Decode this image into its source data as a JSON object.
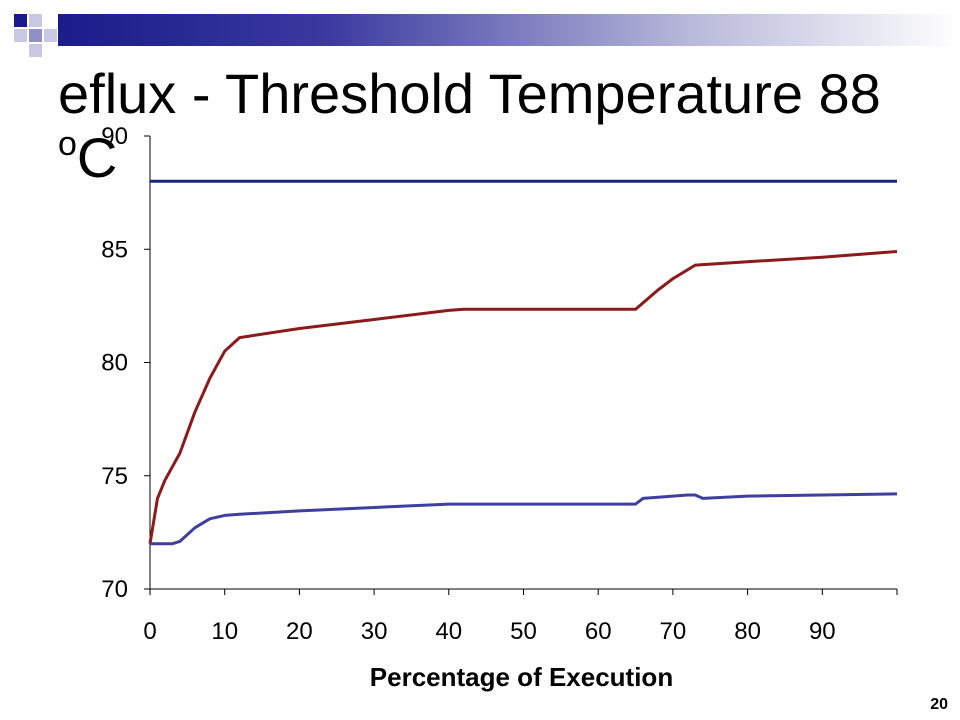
{
  "slide": {
    "title_text": "eflux - Threshold Temperature 88",
    "title_degree": "o",
    "title_unit": "C",
    "page_number": "20"
  },
  "chart_data": {
    "type": "line",
    "xlabel": "Percentage of Execution",
    "ylabel": "",
    "xlim": [
      0,
      100
    ],
    "ylim": [
      70,
      90
    ],
    "x_ticks": [
      0,
      10,
      20,
      30,
      40,
      50,
      60,
      70,
      80,
      90
    ],
    "y_ticks": [
      70,
      75,
      80,
      85,
      90
    ],
    "grid": false,
    "series": [
      {
        "color": "#1a237e",
        "x": [
          0,
          100
        ],
        "y": [
          88,
          88
        ]
      },
      {
        "color": "#8b1a1a",
        "x": [
          0,
          1,
          2,
          4,
          6,
          8,
          10,
          12,
          20,
          30,
          40,
          42,
          50,
          60,
          65,
          68,
          70,
          73,
          80,
          90,
          100
        ],
        "y": [
          72,
          74,
          74.8,
          76,
          77.8,
          79.3,
          80.5,
          81.1,
          81.5,
          81.9,
          82.3,
          82.35,
          82.35,
          82.35,
          82.35,
          83.2,
          83.7,
          84.3,
          84.45,
          84.65,
          84.9
        ]
      },
      {
        "color": "#3f3f9f",
        "x": [
          0,
          1,
          3,
          4,
          6,
          8,
          10,
          12,
          20,
          30,
          40,
          50,
          60,
          65,
          66,
          68,
          70,
          72,
          73,
          74,
          80,
          90,
          100
        ],
        "y": [
          72,
          72,
          72,
          72.1,
          72.7,
          73.1,
          73.25,
          73.3,
          73.45,
          73.6,
          73.75,
          73.75,
          73.75,
          73.75,
          74,
          74.05,
          74.1,
          74.15,
          74.15,
          74,
          74.1,
          74.15,
          74.2
        ]
      }
    ]
  }
}
